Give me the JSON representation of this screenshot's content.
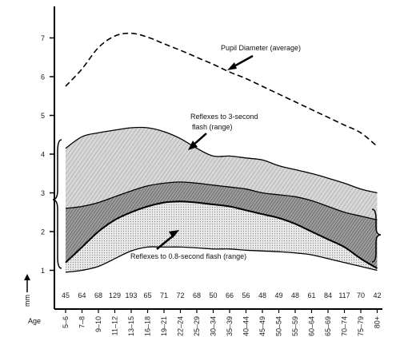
{
  "chart_data": {
    "type": "area",
    "xlabel": "Age",
    "ylabel": "mm",
    "ylim": [
      0,
      7.5
    ],
    "yticks": [
      1,
      2,
      3,
      4,
      5,
      6,
      7
    ],
    "categories": [
      "5–6",
      "7–8",
      "9–10",
      "11–12",
      "13–15",
      "16–18",
      "19–21",
      "22–24",
      "25–29",
      "30–34",
      "35–39",
      "40–44",
      "45–49",
      "50–54",
      "55–59",
      "60–64",
      "65–69",
      "70–74",
      "75–79",
      "80+"
    ],
    "counts": [
      "45",
      "64",
      "68",
      "129",
      "193",
      "65",
      "71",
      "72",
      "68",
      "50",
      "66",
      "56",
      "48",
      "49",
      "48",
      "61",
      "84",
      "117",
      "70",
      "42"
    ],
    "series": [
      {
        "name": "Pupil Diameter (average)",
        "style": "dashed-line",
        "x": [
          0,
          1,
          2,
          3,
          4,
          5,
          6,
          7,
          8,
          9,
          10,
          11,
          12,
          13,
          14,
          15,
          16,
          17,
          18,
          19
        ],
        "values": [
          5.75,
          6.2,
          6.75,
          7.05,
          7.12,
          7.02,
          6.85,
          6.68,
          6.5,
          6.32,
          6.12,
          5.95,
          5.75,
          5.55,
          5.35,
          5.15,
          4.95,
          4.75,
          4.55,
          4.2
        ]
      },
      {
        "name": "Reflexes to 3-second flash (range)",
        "style": "band",
        "x": [
          0,
          1,
          2,
          3,
          4,
          5,
          6,
          7,
          8,
          9,
          10,
          11,
          12,
          13,
          14,
          15,
          16,
          17,
          18,
          19
        ],
        "upper": [
          4.15,
          4.45,
          4.55,
          4.62,
          4.68,
          4.68,
          4.58,
          4.4,
          4.15,
          3.95,
          3.95,
          3.9,
          3.85,
          3.7,
          3.6,
          3.5,
          3.38,
          3.25,
          3.1,
          3.0
        ],
        "lower": [
          1.2,
          1.6,
          2.0,
          2.3,
          2.5,
          2.65,
          2.75,
          2.78,
          2.75,
          2.7,
          2.65,
          2.55,
          2.45,
          2.35,
          2.2,
          2.0,
          1.8,
          1.6,
          1.3,
          1.05
        ]
      },
      {
        "name": "Reflexes to 0.8-second flash (range)",
        "style": "band",
        "x": [
          0,
          1,
          2,
          3,
          4,
          5,
          6,
          7,
          8,
          9,
          10,
          11,
          12,
          13,
          14,
          15,
          16,
          17,
          18,
          19
        ],
        "upper": [
          2.6,
          2.65,
          2.75,
          2.9,
          3.05,
          3.18,
          3.25,
          3.28,
          3.25,
          3.2,
          3.15,
          3.1,
          3.0,
          2.95,
          2.9,
          2.8,
          2.65,
          2.5,
          2.4,
          2.3
        ],
        "lower": [
          0.95,
          1.0,
          1.1,
          1.3,
          1.5,
          1.6,
          1.6,
          1.6,
          1.58,
          1.55,
          1.55,
          1.52,
          1.5,
          1.48,
          1.45,
          1.4,
          1.3,
          1.2,
          1.1,
          1.0
        ]
      }
    ],
    "annotations": [
      {
        "text": "Pupil Diameter (average)",
        "series": 0,
        "lines": [
          "Pupil Diameter (average)"
        ]
      },
      {
        "text": "Reflexes to 3-second flash (range)",
        "series": 1,
        "lines": [
          "Reflexes to 3-second",
          "flash (range)"
        ]
      },
      {
        "text": "Reflexes to 0.8-second flash (range)",
        "series": 2,
        "lines": [
          "Reflexes to 0.8-second flash (range)"
        ]
      }
    ],
    "grid": false,
    "legend": "none"
  }
}
